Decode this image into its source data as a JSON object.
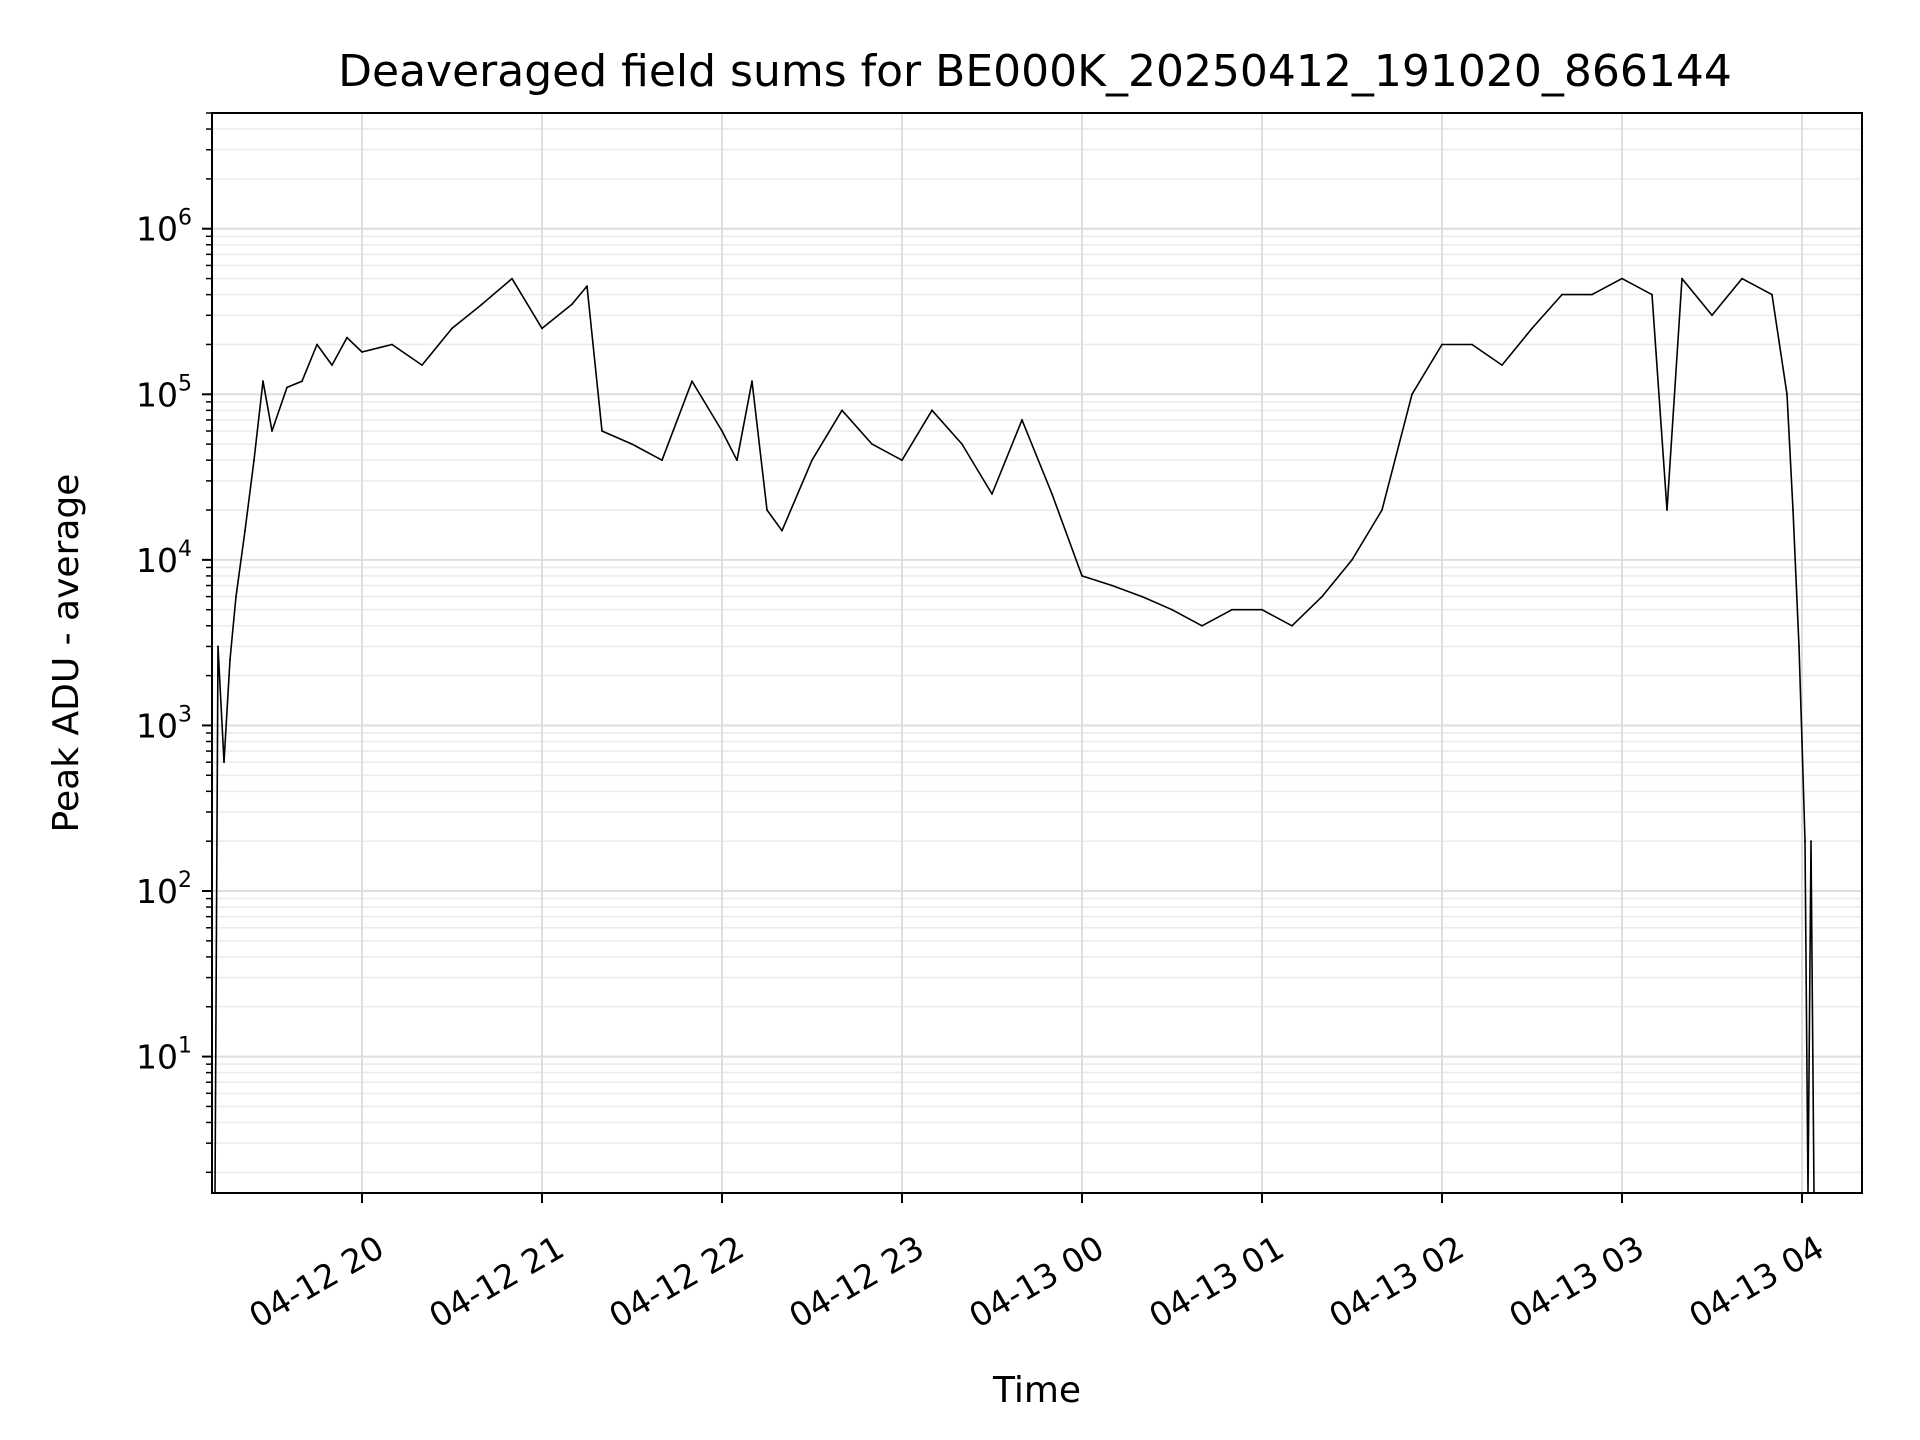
{
  "chart_data": {
    "type": "line",
    "title": "Deaveraged field sums for BE000K_20250412_191020_866144",
    "xlabel": "Time",
    "ylabel": "Peak ADU - average",
    "yscale": "log",
    "ylim": [
      1.5,
      5000000
    ],
    "xlim": [
      "2025-04-12T19:10",
      "2025-04-13T04:20"
    ],
    "grid": true,
    "line_color": "#000000",
    "x_ticks": [
      {
        "t": "2025-04-12T20:00",
        "label": "04-12 20"
      },
      {
        "t": "2025-04-12T21:00",
        "label": "04-12 21"
      },
      {
        "t": "2025-04-12T22:00",
        "label": "04-12 22"
      },
      {
        "t": "2025-04-12T23:00",
        "label": "04-12 23"
      },
      {
        "t": "2025-04-13T00:00",
        "label": "04-13 00"
      },
      {
        "t": "2025-04-13T01:00",
        "label": "04-13 01"
      },
      {
        "t": "2025-04-13T02:00",
        "label": "04-13 02"
      },
      {
        "t": "2025-04-13T03:00",
        "label": "04-13 03"
      },
      {
        "t": "2025-04-13T04:00",
        "label": "04-13 04"
      }
    ],
    "y_ticks": [
      {
        "value": 10,
        "base": "10",
        "exp": "1"
      },
      {
        "value": 100,
        "base": "10",
        "exp": "2"
      },
      {
        "value": 1000,
        "base": "10",
        "exp": "3"
      },
      {
        "value": 10000,
        "base": "10",
        "exp": "4"
      },
      {
        "value": 100000,
        "base": "10",
        "exp": "5"
      },
      {
        "value": 1000000,
        "base": "10",
        "exp": "6"
      }
    ],
    "series": [
      {
        "points": [
          [
            "2025-04-12T19:11",
            1.5
          ],
          [
            "2025-04-12T19:12",
            3000
          ],
          [
            "2025-04-12T19:14",
            600
          ],
          [
            "2025-04-12T19:16",
            2500
          ],
          [
            "2025-04-12T19:18",
            6000
          ],
          [
            "2025-04-12T19:21",
            15000
          ],
          [
            "2025-04-12T19:24",
            40000
          ],
          [
            "2025-04-12T19:27",
            120000
          ],
          [
            "2025-04-12T19:30",
            60000
          ],
          [
            "2025-04-12T19:35",
            110000
          ],
          [
            "2025-04-12T19:40",
            120000
          ],
          [
            "2025-04-12T19:45",
            200000
          ],
          [
            "2025-04-12T19:50",
            150000
          ],
          [
            "2025-04-12T19:55",
            220000
          ],
          [
            "2025-04-12T20:00",
            180000
          ],
          [
            "2025-04-12T20:10",
            200000
          ],
          [
            "2025-04-12T20:20",
            150000
          ],
          [
            "2025-04-12T20:30",
            250000
          ],
          [
            "2025-04-12T20:40",
            350000
          ],
          [
            "2025-04-12T20:50",
            500000
          ],
          [
            "2025-04-12T21:00",
            250000
          ],
          [
            "2025-04-12T21:10",
            350000
          ],
          [
            "2025-04-12T21:15",
            450000
          ],
          [
            "2025-04-12T21:20",
            60000
          ],
          [
            "2025-04-12T21:30",
            50000
          ],
          [
            "2025-04-12T21:40",
            40000
          ],
          [
            "2025-04-12T21:50",
            120000
          ],
          [
            "2025-04-12T22:00",
            60000
          ],
          [
            "2025-04-12T22:05",
            40000
          ],
          [
            "2025-04-12T22:10",
            120000
          ],
          [
            "2025-04-12T22:15",
            20000
          ],
          [
            "2025-04-12T22:20",
            15000
          ],
          [
            "2025-04-12T22:30",
            40000
          ],
          [
            "2025-04-12T22:40",
            80000
          ],
          [
            "2025-04-12T22:50",
            50000
          ],
          [
            "2025-04-12T23:00",
            40000
          ],
          [
            "2025-04-12T23:10",
            80000
          ],
          [
            "2025-04-12T23:20",
            50000
          ],
          [
            "2025-04-12T23:30",
            25000
          ],
          [
            "2025-04-12T23:40",
            70000
          ],
          [
            "2025-04-12T23:50",
            25000
          ],
          [
            "2025-04-13T00:00",
            8000
          ],
          [
            "2025-04-13T00:10",
            7000
          ],
          [
            "2025-04-13T00:20",
            6000
          ],
          [
            "2025-04-13T00:30",
            5000
          ],
          [
            "2025-04-13T00:40",
            4000
          ],
          [
            "2025-04-13T00:50",
            5000
          ],
          [
            "2025-04-13T01:00",
            5000
          ],
          [
            "2025-04-13T01:10",
            4000
          ],
          [
            "2025-04-13T01:20",
            6000
          ],
          [
            "2025-04-13T01:30",
            10000
          ],
          [
            "2025-04-13T01:40",
            20000
          ],
          [
            "2025-04-13T01:50",
            100000
          ],
          [
            "2025-04-13T02:00",
            200000
          ],
          [
            "2025-04-13T02:10",
            200000
          ],
          [
            "2025-04-13T02:20",
            150000
          ],
          [
            "2025-04-13T02:30",
            250000
          ],
          [
            "2025-04-13T02:40",
            400000
          ],
          [
            "2025-04-13T02:50",
            400000
          ],
          [
            "2025-04-13T03:00",
            500000
          ],
          [
            "2025-04-13T03:10",
            400000
          ],
          [
            "2025-04-13T03:15",
            20000
          ],
          [
            "2025-04-13T03:20",
            500000
          ],
          [
            "2025-04-13T03:30",
            300000
          ],
          [
            "2025-04-13T03:40",
            500000
          ],
          [
            "2025-04-13T03:50",
            400000
          ],
          [
            "2025-04-13T03:55",
            100000
          ],
          [
            "2025-04-13T03:57",
            20000
          ],
          [
            "2025-04-13T03:59",
            3000
          ],
          [
            "2025-04-13T04:00",
            800
          ],
          [
            "2025-04-13T04:01",
            200
          ],
          [
            "2025-04-13T04:02",
            1.5
          ],
          [
            "2025-04-13T04:03",
            200
          ],
          [
            "2025-04-13T04:04",
            1.5
          ]
        ]
      }
    ]
  }
}
